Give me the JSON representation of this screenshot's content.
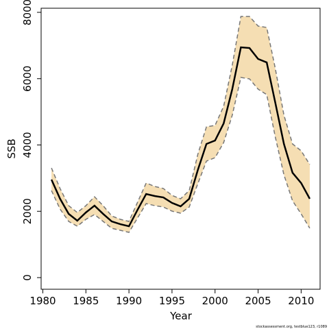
{
  "chart_data": {
    "type": "line",
    "xlabel": "Year",
    "ylabel": "SSB",
    "footnote": "stockassessment.org, testblue123, r1089",
    "x": [
      1981,
      1982,
      1983,
      1984,
      1985,
      1986,
      1987,
      1988,
      1989,
      1990,
      1991,
      1992,
      1993,
      1994,
      1995,
      1996,
      1997,
      1998,
      1999,
      2000,
      2001,
      2002,
      2003,
      2004,
      2005,
      2006,
      2007,
      2008,
      2009,
      2010,
      2011
    ],
    "values": [
      2956,
      2377,
      1922,
      1716,
      1964,
      2170,
      1922,
      1695,
      1612,
      1550,
      2046,
      2522,
      2460,
      2418,
      2253,
      2150,
      2377,
      3245,
      4031,
      4134,
      4651,
      5684,
      6945,
      6924,
      6594,
      6490,
      5271,
      4031,
      3162,
      2852,
      2377
    ],
    "upper": [
      3307,
      2687,
      2170,
      1964,
      2170,
      2439,
      2170,
      1860,
      1757,
      1695,
      2274,
      2852,
      2749,
      2687,
      2480,
      2377,
      2625,
      3720,
      4547,
      4589,
      5167,
      6408,
      7875,
      7875,
      7586,
      7544,
      6304,
      4899,
      4031,
      3824,
      3411
    ],
    "lower": [
      2625,
      2067,
      1695,
      1550,
      1757,
      1902,
      1695,
      1488,
      1426,
      1364,
      1798,
      2232,
      2170,
      2129,
      2005,
      1943,
      2129,
      2832,
      3514,
      3617,
      4072,
      4899,
      6036,
      5994,
      5684,
      5519,
      4237,
      3100,
      2315,
      1922,
      1488
    ],
    "line_color": "#000000",
    "band_color": "#f5deb3",
    "bound_color": "#777777",
    "xlim": [
      1979.8,
      2012.2
    ],
    "ylim": [
      -351,
      8124
    ],
    "xticks": [
      1980,
      1985,
      1990,
      1995,
      2000,
      2005,
      2010
    ],
    "yticks": [
      0,
      2000,
      4000,
      6000,
      8000
    ]
  }
}
